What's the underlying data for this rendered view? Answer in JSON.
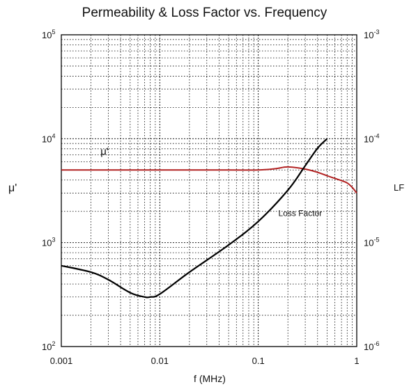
{
  "chart_data": {
    "type": "line",
    "title": "Permeability & Loss Factor vs. Frequency",
    "xlabel": "f (MHz)",
    "ylabel": "μ'",
    "ylabel_right": "LF",
    "x_scale": "log",
    "y_scale": "log",
    "xlim": [
      0.001,
      1
    ],
    "ylim": [
      100,
      100000
    ],
    "y2lim": [
      1e-06,
      0.001
    ],
    "grid": true,
    "x_ticks": [
      {
        "value": 0.001,
        "label": "0.001"
      },
      {
        "value": 0.01,
        "label": "0.01"
      },
      {
        "value": 0.1,
        "label": "0.1"
      },
      {
        "value": 1,
        "label": "1"
      }
    ],
    "y_ticks": [
      {
        "value": 100,
        "base": "10",
        "exp": "2"
      },
      {
        "value": 1000,
        "base": "10",
        "exp": "3"
      },
      {
        "value": 10000,
        "base": "10",
        "exp": "4"
      },
      {
        "value": 100000,
        "base": "10",
        "exp": "5"
      }
    ],
    "y2_ticks": [
      {
        "value": 1e-06,
        "base": "10",
        "exp": "-6"
      },
      {
        "value": 1e-05,
        "base": "10",
        "exp": "-5"
      },
      {
        "value": 0.0001,
        "base": "10",
        "exp": "-4"
      },
      {
        "value": 0.001,
        "base": "10",
        "exp": "-3"
      }
    ],
    "series": [
      {
        "name": "μ'",
        "axis": "left",
        "color": "#b22222",
        "x": [
          0.001,
          0.01,
          0.05,
          0.1,
          0.15,
          0.2,
          0.3,
          0.4,
          0.5,
          0.6,
          0.7,
          0.8,
          0.9,
          1.0
        ],
        "y": [
          5000,
          5000,
          5000,
          5000,
          5150,
          5350,
          5100,
          4750,
          4400,
          4150,
          3950,
          3750,
          3400,
          3000
        ]
      },
      {
        "name": "Loss Factor",
        "axis": "right",
        "color": "#000000",
        "x": [
          0.001,
          0.002,
          0.003,
          0.005,
          0.007,
          0.008,
          0.01,
          0.02,
          0.05,
          0.1,
          0.2,
          0.3,
          0.4,
          0.5
        ],
        "y": [
          6e-06,
          5.2e-06,
          4.4e-06,
          3.3e-06,
          3e-06,
          3e-06,
          3.2e-06,
          5.2e-06,
          9.5e-06,
          1.6e-05,
          3.2e-05,
          5.5e-05,
          8.1e-05,
          0.0001
        ]
      }
    ],
    "annotations": [
      {
        "text": "μ'",
        "x": 0.0025,
        "y_axis": "left",
        "y": 7000
      },
      {
        "text": "Loss Factor",
        "x": 0.16,
        "y_axis": "left",
        "y": 1800
      }
    ]
  }
}
